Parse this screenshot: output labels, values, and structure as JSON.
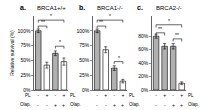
{
  "chart_data": [
    {
      "type": "bar",
      "panel_label": "a.",
      "title": "BRCA1+/+",
      "ylabel": "Relative survival (%)",
      "categories": [
        "-",
        "+",
        "-",
        "+"
      ],
      "olap_categories": [
        "-",
        "-",
        "+",
        "+"
      ],
      "row_labels": [
        "PL",
        "Olap."
      ],
      "left_row_labels": [
        "PL",
        "Olap."
      ],
      "values": [
        100,
        42,
        62,
        48
      ],
      "errors": [
        3,
        5,
        4,
        6
      ],
      "colors": [
        "#b0b0b0",
        "#ffffff",
        "#b0b0b0",
        "#ffffff"
      ],
      "ylim": [
        0,
        125
      ],
      "yticks": [
        {
          "value": 0,
          "label": "0%"
        },
        {
          "value": 25,
          "label": "25%"
        },
        {
          "value": 50,
          "label": "50%"
        },
        {
          "value": 75,
          "label": "75%"
        },
        {
          "value": 100,
          "label": "100%"
        }
      ],
      "brackets": [
        {
          "from": 0,
          "to": 1,
          "y": 108,
          "label": "**"
        },
        {
          "from": 2,
          "to": 3,
          "y": 74,
          "label": "*"
        },
        {
          "from": 0,
          "to": 3,
          "y": 118,
          "label": "*"
        }
      ],
      "grid": false
    },
    {
      "type": "bar",
      "panel_label": "b.",
      "title": "BRCA1-/-",
      "categories": [
        "-",
        "+",
        "-",
        "+"
      ],
      "olap_categories": [
        "-",
        "-",
        "+",
        "+"
      ],
      "row_labels": [
        "PL",
        "Olap."
      ],
      "values": [
        100,
        68,
        37,
        15
      ],
      "errors": [
        3,
        5,
        4,
        3
      ],
      "colors": [
        "#b0b0b0",
        "#ffffff",
        "#b0b0b0",
        "#ffffff"
      ],
      "ylim": [
        0,
        125
      ],
      "yticks": [
        {
          "value": 0,
          "label": "0%"
        },
        {
          "value": 25,
          "label": "25%"
        },
        {
          "value": 50,
          "label": "50%"
        },
        {
          "value": 75,
          "label": "75%"
        },
        {
          "value": 100,
          "label": "100%"
        }
      ],
      "brackets": [
        {
          "from": 0,
          "to": 1,
          "y": 108,
          "label": "**"
        },
        {
          "from": 2,
          "to": 3,
          "y": 48,
          "label": "*"
        },
        {
          "from": 0,
          "to": 3,
          "y": 118,
          "label": "*"
        }
      ],
      "grid": false
    },
    {
      "type": "bar",
      "panel_label": "c.",
      "title": "BRCA2-/-",
      "categories": [
        "-",
        "+",
        "-",
        "+"
      ],
      "olap_categories": [
        "-",
        "-",
        "+",
        "+"
      ],
      "row_labels": [
        "PL",
        "Olap."
      ],
      "values": [
        80,
        65,
        65,
        10
      ],
      "errors": [
        3,
        4,
        4,
        2
      ],
      "colors": [
        "#b0b0b0",
        "#b0b0b0",
        "#b0b0b0",
        "#ffffff"
      ],
      "ylim": [
        0,
        110
      ],
      "yticks": [
        {
          "value": 0,
          "label": "0%"
        },
        {
          "value": 20,
          "label": "20%"
        },
        {
          "value": 40,
          "label": "40%"
        },
        {
          "value": 60,
          "label": "60%"
        },
        {
          "value": 80,
          "label": "80%"
        }
      ],
      "brackets": [
        {
          "from": 0,
          "to": 1,
          "y": 85,
          "label": "**"
        },
        {
          "from": 2,
          "to": 3,
          "y": 76,
          "label": "**"
        },
        {
          "from": 0,
          "to": 3,
          "y": 97,
          "label": "*"
        }
      ],
      "grid": false
    }
  ]
}
